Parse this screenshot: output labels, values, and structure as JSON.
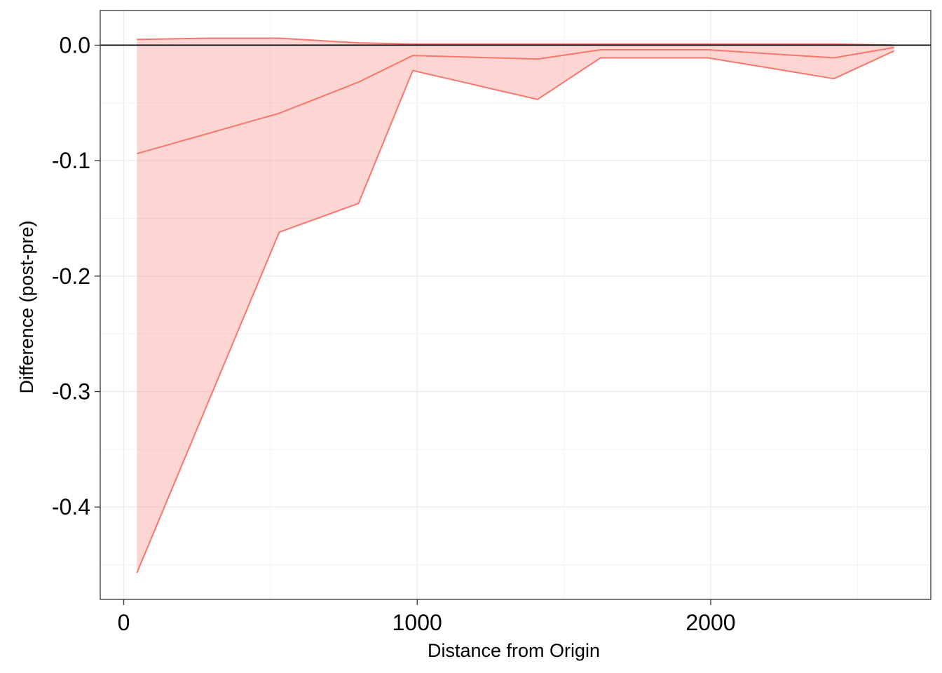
{
  "chart_data": {
    "type": "area",
    "title": "",
    "xlabel": "Distance from Origin",
    "ylabel": "Difference (post-pre)",
    "xlim": [
      -80,
      2750
    ],
    "ylim": [
      -0.48,
      0.03
    ],
    "x_ticks": [
      0,
      1000,
      2000
    ],
    "x_tick_labels": [
      "0",
      "1000",
      "2000"
    ],
    "y_ticks": [
      0.0,
      -0.1,
      -0.2,
      -0.3,
      -0.4
    ],
    "y_tick_labels": [
      "0.0",
      "-0.1",
      "-0.2",
      "-0.3",
      "-0.4"
    ],
    "grid": true,
    "legend": "none",
    "reference_line_y": 0,
    "colors": {
      "fill": "#F8766D",
      "fill_opacity": 0.3,
      "line": "#F8766D",
      "reference_line": "#000000",
      "panel_border": "#333333",
      "grid_major": "#ebebeb",
      "grid_minor": "#f3f3f3"
    },
    "mean": {
      "x": [
        45,
        530,
        800,
        985,
        1410,
        1625,
        1990,
        2420,
        2625
      ],
      "y": [
        -0.094,
        -0.059,
        -0.032,
        -0.009,
        -0.012,
        -0.004,
        -0.004,
        -0.011,
        -0.002
      ]
    },
    "upper": {
      "x": [
        45,
        300,
        530,
        800,
        985,
        1410,
        1625,
        1990,
        2420,
        2625
      ],
      "y": [
        0.005,
        0.006,
        0.006,
        0.002,
        0.001,
        0.001,
        0.001,
        0.001,
        0.001,
        0.0
      ]
    },
    "lower": {
      "x": [
        45,
        530,
        800,
        985,
        1410,
        1625,
        1990,
        2420,
        2625
      ],
      "y": [
        -0.457,
        -0.162,
        -0.137,
        -0.022,
        -0.047,
        -0.011,
        -0.011,
        -0.029,
        -0.005
      ]
    }
  }
}
